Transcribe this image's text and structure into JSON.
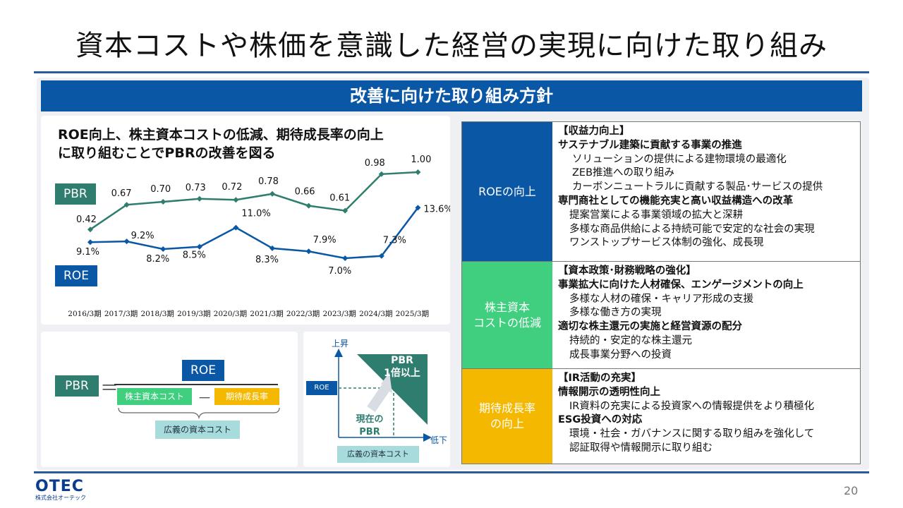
{
  "slide": {
    "title": "資本コストや株価を意識した経営の実現に向けた取り組み",
    "section_header": "改善に向けた取り組み方針",
    "page_number": "20"
  },
  "chart": {
    "heading_line1": "ROE向上、株主資本コストの低減、期待成長率の向上",
    "heading_line2": "に取り組むことでPBRの改善を図る",
    "pbr_label": "PBR",
    "roe_label": "ROE"
  },
  "chart_data": {
    "type": "line",
    "categories": [
      "2016/3期",
      "2017/3期",
      "2018/3期",
      "2019/3期",
      "2020/3期",
      "2021/3期",
      "2022/3期",
      "2023/3期",
      "2024/3期",
      "2025/3期"
    ],
    "series": [
      {
        "name": "PBR",
        "values": [
          0.42,
          0.67,
          0.7,
          0.73,
          0.72,
          0.78,
          0.66,
          0.61,
          0.98,
          1.0
        ],
        "labels": [
          "0.42",
          "0.67",
          "0.70",
          "0.73",
          "0.72",
          "0.78",
          "0.66",
          "0.61",
          "0.98",
          "1.00"
        ],
        "color": "#2e7d6e"
      },
      {
        "name": "ROE",
        "values": [
          9.1,
          9.2,
          8.2,
          8.5,
          11.0,
          8.3,
          7.9,
          7.0,
          7.3,
          13.6
        ],
        "labels": [
          "9.1%",
          "9.2%",
          "8.2%",
          "8.5%",
          "11.0%",
          "8.3%",
          "7.9%",
          "7.0%",
          "7.3%",
          "13.6%"
        ],
        "color": "#0a57a6"
      }
    ]
  },
  "formula": {
    "pbr": "PBR",
    "equals": "＝",
    "roe": "ROE",
    "cost": "株主資本コスト",
    "minus": "－",
    "growth": "期待成長率",
    "wide_cost": "広義の資本コスト"
  },
  "diagram": {
    "up": "上昇",
    "down": "低下",
    "roe": "ROE",
    "pbr_line1": "PBR",
    "pbr_line2": "1倍以上",
    "current_line1": "現在の",
    "current_line2": "PBR",
    "wide_cost": "広義の資本コスト"
  },
  "policy": {
    "rows": [
      {
        "label": "ROEの向上",
        "color": "#0a57a6",
        "lines": [
          {
            "text": "【収益力向上】",
            "style": "b"
          },
          {
            "text": "サステナブル建築に貢献する事業の推進",
            "style": "b"
          },
          {
            "text": "ソリューションの提供による建物環境の最適化",
            "style": "i2"
          },
          {
            "text": "ZEB推進への取り組み",
            "style": "i2"
          },
          {
            "text": "カーボンニュートラルに貢献する製品･サービスの提供",
            "style": "i2"
          },
          {
            "text": "専門商社としての機能充実と高い収益構造への改革",
            "style": "b"
          },
          {
            "text": "提案営業による事業領域の拡大と深耕",
            "style": "i1"
          },
          {
            "text": "多様な商品供給による持続可能で安定的な社会の実現",
            "style": "i1"
          },
          {
            "text": "ワンストップサービス体制の強化、成長現",
            "style": "i1"
          }
        ]
      },
      {
        "label": "株主資本\nコストの低減",
        "color": "#3fcf7f",
        "lines": [
          {
            "text": "【資本政策･財務戦略の強化】",
            "style": "b"
          },
          {
            "text": "事業拡大に向けた人材確保、エンゲージメントの向上",
            "style": "b"
          },
          {
            "text": "多様な人材の確保・キャリア形成の支援",
            "style": "i1"
          },
          {
            "text": "多様な働き方の実現",
            "style": "i1"
          },
          {
            "text": "適切な株主還元の実施と経営資源の配分",
            "style": "b"
          },
          {
            "text": "持続的・安定的な株主還元",
            "style": "i1"
          },
          {
            "text": "成長事業分野への投資",
            "style": "i1"
          }
        ]
      },
      {
        "label": "期待成長率\nの向上",
        "color": "#f5b800",
        "lines": [
          {
            "text": "【IR活動の充実】",
            "style": "b"
          },
          {
            "text": "情報開示の透明性向上",
            "style": "b"
          },
          {
            "text": "IR資料の充実による投資家への情報提供をより積極化",
            "style": "i1"
          },
          {
            "text": "ESG投資への対応",
            "style": "b"
          },
          {
            "text": "環境・社会・ガバナンスに関する取り組みを強化して",
            "style": "i1"
          },
          {
            "text": "認証取得や情報開示に取り組む",
            "style": "i1"
          }
        ]
      }
    ]
  },
  "logo": {
    "main": "OTEC",
    "sub": "株式会社オーテック"
  }
}
